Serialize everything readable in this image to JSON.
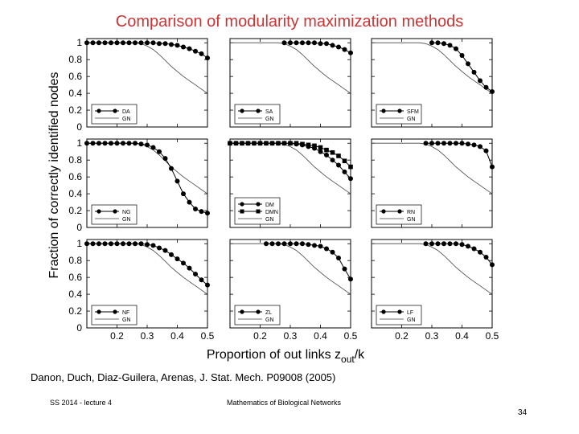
{
  "slide": {
    "title": "Comparison of modularity maximization methods",
    "citation": "Danon, Duch, Diaz-Guilera, Arenas, J. Stat. Mech. P09008 (2005)",
    "footer_left": "SS 2014 - lecture 4",
    "footer_center": "Mathematics of Biological Networks",
    "page_number": "34"
  },
  "chart_data": {
    "type": "line",
    "ylabel": "Fraction of correctly identified nodes",
    "xlabel_main": "Proportion of out links z",
    "xlabel_sub": "out",
    "xlabel_tail": "/k",
    "xlim": [
      0.1,
      0.5
    ],
    "ylim": [
      0,
      1.05
    ],
    "xticks": [
      "0.2",
      "0.3",
      "0.4",
      "0.5"
    ],
    "yticks": [
      "0",
      "0.2",
      "0.4",
      "0.6",
      "0.8",
      "1"
    ],
    "x": [
      0.1,
      0.12,
      0.14,
      0.16,
      0.18,
      0.2,
      0.22,
      0.24,
      0.26,
      0.28,
      0.3,
      0.32,
      0.34,
      0.36,
      0.38,
      0.4,
      0.42,
      0.44,
      0.46,
      0.48,
      0.5
    ],
    "gn_reference": {
      "name": "GN",
      "values": [
        1,
        1,
        1,
        1,
        1,
        1,
        1,
        1,
        1,
        0.99,
        0.96,
        0.92,
        0.86,
        0.79,
        0.72,
        0.66,
        0.6,
        0.55,
        0.5,
        0.45,
        0.4
      ]
    },
    "panels": [
      {
        "series": [
          {
            "name": "DA",
            "marker": "circle",
            "values": [
              1,
              1,
              1,
              1,
              1,
              1,
              1,
              1,
              1,
              1,
              1,
              1,
              0.99,
              0.99,
              0.98,
              0.97,
              0.95,
              0.93,
              0.9,
              0.87,
              0.82
            ]
          }
        ],
        "legend": [
          "DA",
          "GN"
        ]
      },
      {
        "series": [
          {
            "name": "SA",
            "marker": "circle",
            "values": [
              null,
              null,
              null,
              null,
              null,
              null,
              null,
              null,
              null,
              1,
              1,
              1,
              1,
              1,
              1,
              0.99,
              0.99,
              0.97,
              0.95,
              0.92,
              0.88
            ]
          }
        ],
        "legend": [
          "SA",
          "GN"
        ]
      },
      {
        "series": [
          {
            "name": "SFM",
            "marker": "circle",
            "values": [
              null,
              null,
              null,
              null,
              null,
              null,
              null,
              null,
              null,
              null,
              1,
              1,
              0.99,
              0.97,
              0.93,
              0.85,
              0.75,
              0.65,
              0.55,
              0.47,
              0.42
            ]
          }
        ],
        "legend": [
          "SFM",
          "GN"
        ]
      },
      {
        "series": [
          {
            "name": "NG",
            "marker": "circle",
            "values": [
              1,
              1,
              1,
              1,
              1,
              1,
              1,
              1,
              1,
              0.99,
              0.98,
              0.95,
              0.9,
              0.82,
              0.7,
              0.55,
              0.4,
              0.3,
              0.22,
              0.19,
              0.17
            ]
          }
        ],
        "legend": [
          "NG",
          "GN"
        ]
      },
      {
        "series": [
          {
            "name": "DM",
            "marker": "circle",
            "values": [
              1,
              1,
              1,
              1,
              1,
              1,
              1,
              1,
              1,
              1,
              1,
              0.99,
              0.98,
              0.96,
              0.94,
              0.9,
              0.86,
              0.8,
              0.74,
              0.66,
              0.58
            ]
          },
          {
            "name": "DMN",
            "marker": "square",
            "values": [
              1,
              1,
              1,
              1,
              1,
              1,
              1,
              1,
              1,
              1,
              1,
              1,
              0.99,
              0.98,
              0.97,
              0.95,
              0.92,
              0.89,
              0.85,
              0.79,
              0.72
            ]
          }
        ],
        "legend": [
          "DM",
          "DMN",
          "GN"
        ]
      },
      {
        "series": [
          {
            "name": "RN",
            "marker": "circle",
            "values": [
              null,
              null,
              null,
              null,
              null,
              null,
              null,
              null,
              null,
              1,
              1,
              1,
              1,
              1,
              1,
              1,
              0.99,
              0.98,
              0.96,
              0.91,
              0.72
            ]
          }
        ],
        "legend": [
          "RN",
          "GN"
        ]
      },
      {
        "series": [
          {
            "name": "NF",
            "marker": "circle",
            "values": [
              1,
              1,
              1,
              1,
              1,
              1,
              1,
              1,
              1,
              1,
              0.99,
              0.98,
              0.95,
              0.92,
              0.87,
              0.82,
              0.77,
              0.71,
              0.64,
              0.57,
              0.51
            ]
          }
        ],
        "legend": [
          "NF",
          "GN"
        ]
      },
      {
        "series": [
          {
            "name": "ZL",
            "marker": "circle",
            "values": [
              null,
              null,
              null,
              null,
              null,
              null,
              1,
              1,
              1,
              1,
              1,
              1,
              1,
              0.99,
              0.98,
              0.97,
              0.94,
              0.9,
              0.83,
              0.7,
              0.58
            ]
          }
        ],
        "legend": [
          "ZL",
          "GN"
        ]
      },
      {
        "series": [
          {
            "name": "LF",
            "marker": "circle",
            "values": [
              null,
              null,
              null,
              null,
              null,
              null,
              null,
              null,
              null,
              1,
              1,
              1,
              1,
              1,
              1,
              0.99,
              0.97,
              0.94,
              0.9,
              0.84,
              0.75
            ]
          }
        ],
        "legend": [
          "LF",
          "GN"
        ]
      }
    ]
  }
}
